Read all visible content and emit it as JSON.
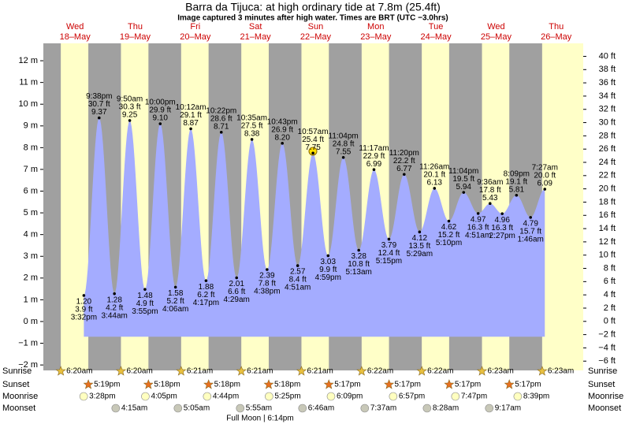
{
  "chart_data": {
    "type": "tide",
    "title": "Barra da Tijuca: at high  ordinary tide at 7.8m (25.4ft)",
    "subtitle": "Image captured 3 minutes after high water. Times are BRT (UTC −3.0hrs)",
    "ylim": [
      -2.25,
      12.8
    ],
    "yticks": [
      {
        "value": -2,
        "label": "−2 m"
      },
      {
        "value": -1,
        "label": "−1 m"
      },
      {
        "value": 0,
        "label": "0 m"
      },
      {
        "value": 1,
        "label": "1 m"
      },
      {
        "value": 2,
        "label": "2 m"
      },
      {
        "value": 3,
        "label": "3 m"
      },
      {
        "value": 4,
        "label": "4 m"
      },
      {
        "value": 5,
        "label": "5 m"
      },
      {
        "value": 6,
        "label": "6 m"
      },
      {
        "value": 7,
        "label": "7 m"
      },
      {
        "value": 8,
        "label": "8 m"
      },
      {
        "value": 9,
        "label": "9 m"
      },
      {
        "value": 10,
        "label": "10 m"
      },
      {
        "value": 11,
        "label": "11 m"
      },
      {
        "value": 12,
        "label": "12 m"
      }
    ],
    "y2lim": [
      -7.4,
      41.96
    ],
    "y2ticks": [
      {
        "value": -6,
        "label": "−6 ft"
      },
      {
        "value": -4,
        "label": "−4 ft"
      },
      {
        "value": -2,
        "label": "−2 ft"
      },
      {
        "value": 0,
        "label": "0 ft"
      },
      {
        "value": 2,
        "label": "2 ft"
      },
      {
        "value": 4,
        "label": "4 ft"
      },
      {
        "value": 6,
        "label": "6 ft"
      },
      {
        "value": 8,
        "label": "8 ft"
      },
      {
        "value": 10,
        "label": "10 ft"
      },
      {
        "value": 12,
        "label": "12 ft"
      },
      {
        "value": 14,
        "label": "14 ft"
      },
      {
        "value": 16,
        "label": "16 ft"
      },
      {
        "value": 18,
        "label": "18 ft"
      },
      {
        "value": 20,
        "label": "20 ft"
      },
      {
        "value": 22,
        "label": "22 ft"
      },
      {
        "value": 24,
        "label": "24 ft"
      },
      {
        "value": 26,
        "label": "26 ft"
      },
      {
        "value": 28,
        "label": "28 ft"
      },
      {
        "value": 30,
        "label": "30 ft"
      },
      {
        "value": 32,
        "label": "32 ft"
      },
      {
        "value": 34,
        "label": "34 ft"
      },
      {
        "value": 36,
        "label": "36 ft"
      },
      {
        "value": 38,
        "label": "38 ft"
      },
      {
        "value": 40,
        "label": "40 ft"
      }
    ],
    "color": "#a4acff",
    "night_color": "#a0a0a0",
    "day_color": "#ffffc8",
    "row_labels": {
      "sunrise": "Sunrise",
      "sunset": "Sunset",
      "moonrise": "Moonrise",
      "moonset": "Moonset"
    },
    "moon_phase": "Full Moon | 6:14pm",
    "days": [
      {
        "weekday": "Wed",
        "date": "18–May",
        "sunrise": "6:20am",
        "sunset": "5:19pm",
        "moonrise": "3:28pm",
        "moonset": null,
        "tides": [
          {
            "time": "3:32pm",
            "m": 1.2,
            "m_label": "1.20",
            "ft_label": "3.9 ft"
          },
          {
            "time": "9:38pm",
            "m": 9.37,
            "m_label": "9.37",
            "ft_label": "30.7 ft"
          }
        ]
      },
      {
        "weekday": "Thu",
        "date": "19–May",
        "sunrise": "6:20am",
        "sunset": "5:18pm",
        "moonrise": "4:05pm",
        "moonset": "4:15am",
        "tides": [
          {
            "time": "3:44am",
            "m": 1.28,
            "m_label": "1.28",
            "ft_label": "4.2 ft"
          },
          {
            "time": "9:50am",
            "m": 9.25,
            "m_label": "9.25",
            "ft_label": "30.3 ft"
          },
          {
            "time": "3:55pm",
            "m": 1.48,
            "m_label": "1.48",
            "ft_label": "4.9 ft"
          },
          {
            "time": "10:00pm",
            "m": 9.1,
            "m_label": "9.10",
            "ft_label": "29.9 ft"
          }
        ]
      },
      {
        "weekday": "Fri",
        "date": "20–May",
        "sunrise": "6:21am",
        "sunset": "5:18pm",
        "moonrise": "4:44pm",
        "moonset": "5:05am",
        "tides": [
          {
            "time": "4:06am",
            "m": 1.58,
            "m_label": "1.58",
            "ft_label": "5.2 ft"
          },
          {
            "time": "10:12am",
            "m": 8.87,
            "m_label": "8.87",
            "ft_label": "29.1 ft"
          },
          {
            "time": "4:17pm",
            "m": 1.88,
            "m_label": "1.88",
            "ft_label": "6.2 ft"
          },
          {
            "time": "10:22pm",
            "m": 8.71,
            "m_label": "8.71",
            "ft_label": "28.6 ft"
          }
        ]
      },
      {
        "weekday": "Sat",
        "date": "21–May",
        "sunrise": "6:21am",
        "sunset": "5:18pm",
        "moonrise": "5:25pm",
        "moonset": "5:55am",
        "tides": [
          {
            "time": "4:29am",
            "m": 2.01,
            "m_label": "2.01",
            "ft_label": "6.6 ft"
          },
          {
            "time": "10:35am",
            "m": 8.38,
            "m_label": "8.38",
            "ft_label": "27.5 ft"
          },
          {
            "time": "4:38pm",
            "m": 2.39,
            "m_label": "2.39",
            "ft_label": "7.8 ft"
          },
          {
            "time": "10:43pm",
            "m": 8.2,
            "m_label": "8.20",
            "ft_label": "26.9 ft"
          }
        ]
      },
      {
        "weekday": "Sun",
        "date": "22–May",
        "sunrise": "6:21am",
        "sunset": "5:17pm",
        "moonrise": "6:09pm",
        "moonset": "6:46am",
        "tides": [
          {
            "time": "4:51am",
            "m": 2.57,
            "m_label": "2.57",
            "ft_label": "8.4 ft"
          },
          {
            "time": "10:57am",
            "m": 7.75,
            "m_label": "7.75",
            "ft_label": "25.4 ft"
          },
          {
            "time": "4:59pm",
            "m": 3.03,
            "m_label": "3.03",
            "ft_label": "9.9 ft"
          },
          {
            "time": "11:04pm",
            "m": 7.55,
            "m_label": "7.55",
            "ft_label": "24.8 ft"
          }
        ]
      },
      {
        "weekday": "Mon",
        "date": "23–May",
        "sunrise": "6:22am",
        "sunset": "5:17pm",
        "moonrise": "6:57pm",
        "moonset": "7:37am",
        "tides": [
          {
            "time": "5:13am",
            "m": 3.28,
            "m_label": "3.28",
            "ft_label": "10.8 ft"
          },
          {
            "time": "11:17am",
            "m": 6.99,
            "m_label": "6.99",
            "ft_label": "22.9 ft"
          },
          {
            "time": "5:15pm",
            "m": 3.79,
            "m_label": "3.79",
            "ft_label": "12.4 ft"
          },
          {
            "time": "11:20pm",
            "m": 6.77,
            "m_label": "6.77",
            "ft_label": "22.2 ft"
          }
        ]
      },
      {
        "weekday": "Tue",
        "date": "24–May",
        "sunrise": "6:22am",
        "sunset": "5:17pm",
        "moonrise": "7:47pm",
        "moonset": "8:28am",
        "tides": [
          {
            "time": "5:29am",
            "m": 4.12,
            "m_label": "4.12",
            "ft_label": "13.5 ft"
          },
          {
            "time": "11:26am",
            "m": 6.13,
            "m_label": "6.13",
            "ft_label": "20.1 ft"
          },
          {
            "time": "5:10pm",
            "m": 4.62,
            "m_label": "4.62",
            "ft_label": "15.2 ft"
          },
          {
            "time": "11:04pm",
            "m": 5.94,
            "m_label": "5.94",
            "ft_label": "19.5 ft"
          }
        ]
      },
      {
        "weekday": "Wed",
        "date": "25–May",
        "sunrise": "6:23am",
        "sunset": "5:17pm",
        "moonrise": "8:39pm",
        "moonset": "9:17am",
        "tides": [
          {
            "time": "4:51am",
            "m": 4.97,
            "m_label": "4.97",
            "ft_label": "16.3 ft"
          },
          {
            "time": "9:36am",
            "m": 5.43,
            "m_label": "5.43",
            "ft_label": "17.8 ft"
          },
          {
            "time": "2:27pm",
            "m": 4.96,
            "m_label": "4.96",
            "ft_label": "16.3 ft"
          },
          {
            "time": "8:09pm",
            "m": 5.81,
            "m_label": "5.81",
            "ft_label": "19.1 ft"
          }
        ]
      },
      {
        "weekday": "Thu",
        "date": "26–May",
        "sunrise": "6:23am",
        "sunset": null,
        "moonrise": null,
        "moonset": null,
        "tides": [
          {
            "time": "1:46am",
            "m": 4.79,
            "m_label": "4.79",
            "ft_label": "15.7 ft"
          },
          {
            "time": "7:27am",
            "m": 6.09,
            "m_label": "6.09",
            "ft_label": "20.0 ft"
          }
        ]
      }
    ]
  }
}
